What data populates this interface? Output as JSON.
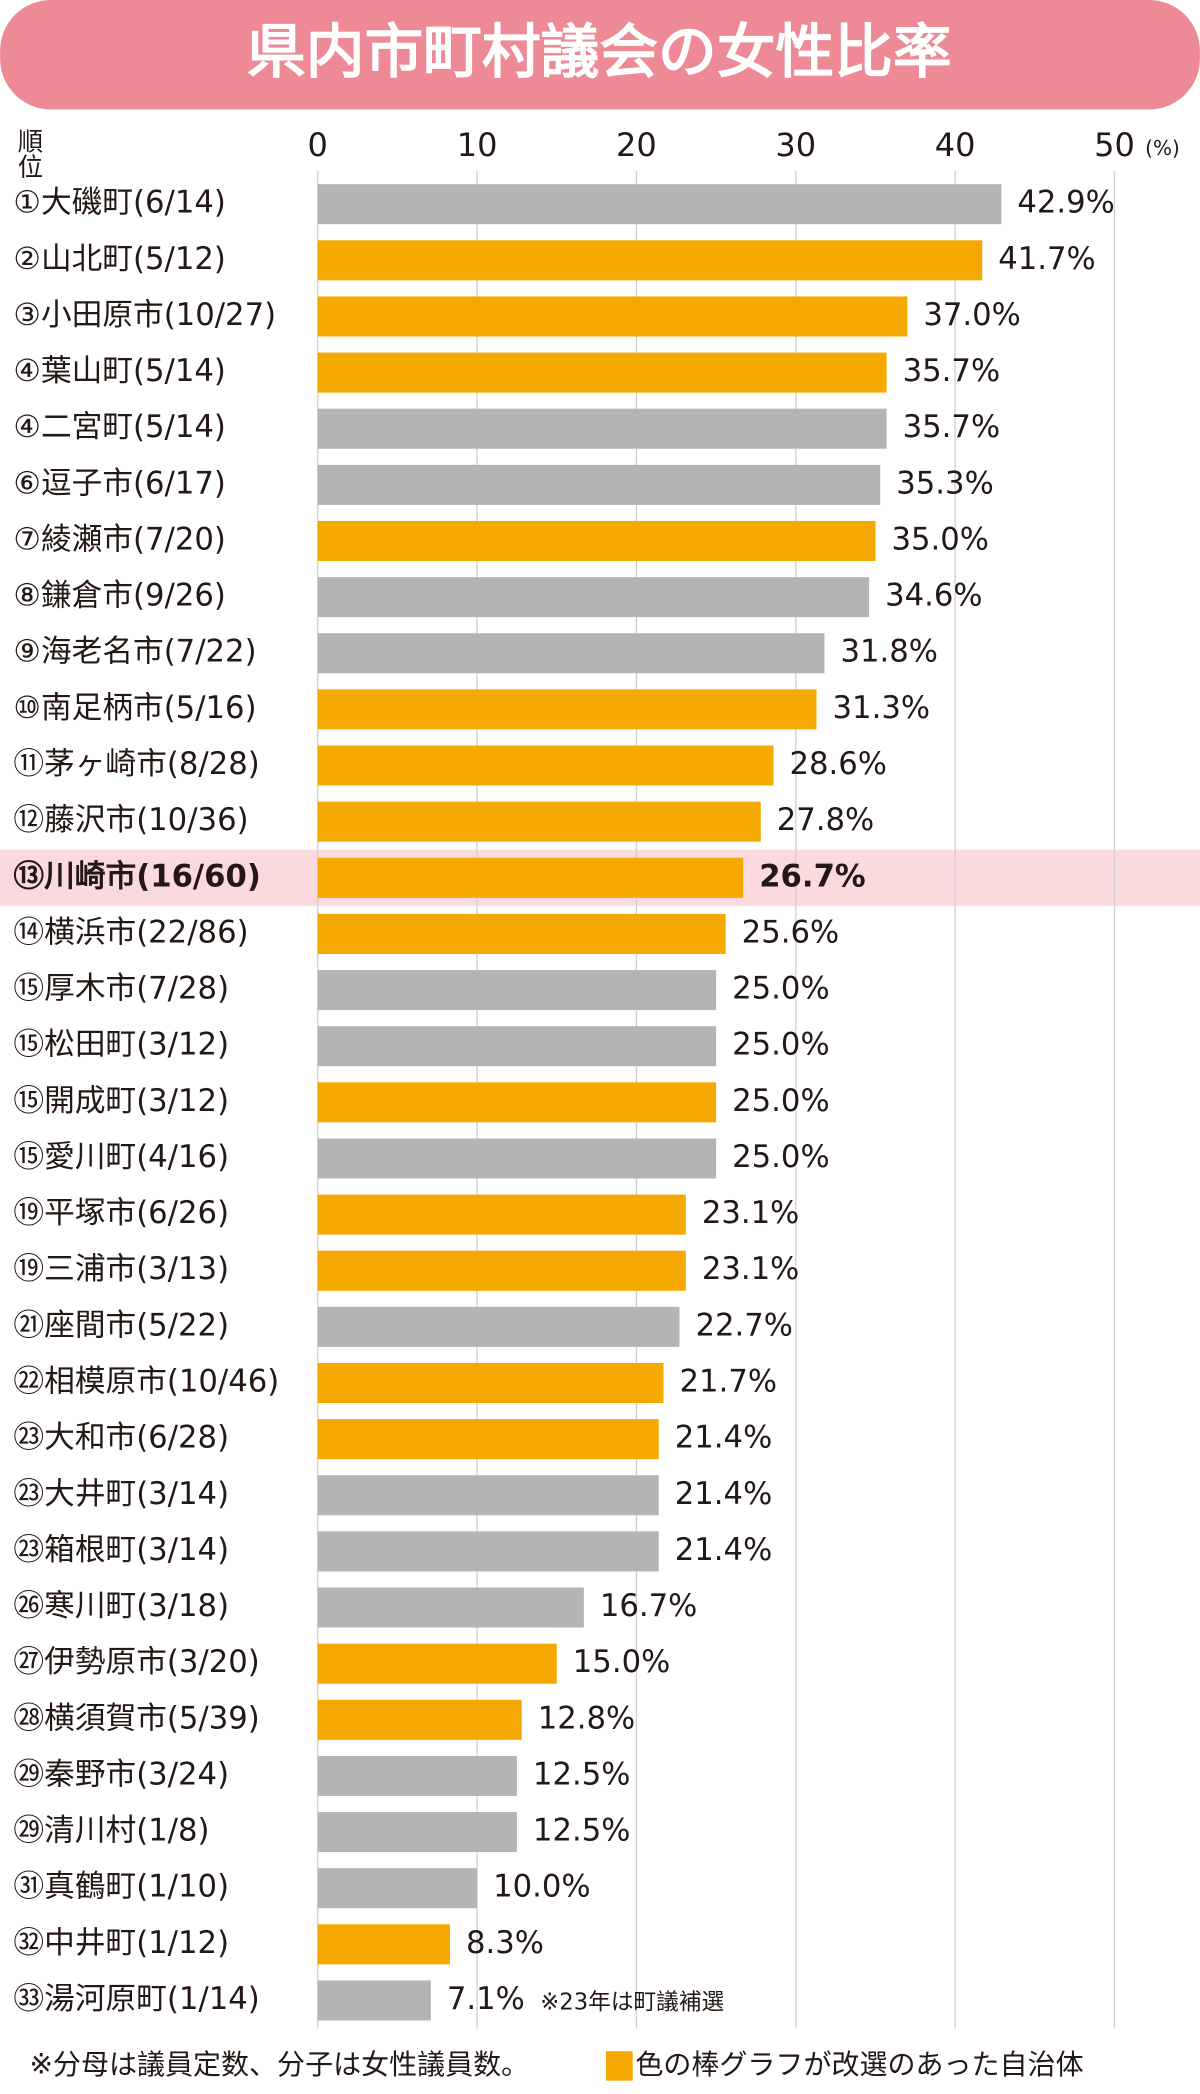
{
  "chart_data": {
    "type": "hbar",
    "title": "県内市町村議会の女性比率",
    "rank_label": "順位",
    "unit_label": "(%)",
    "categories": [
      "①大磯町(6/14)",
      "②山北町(5/12)",
      "③小田原市(10/27)",
      "④葉山町(5/14)",
      "④二宮町(5/14)",
      "⑥逗子市(6/17)",
      "⑦綾瀬市(7/20)",
      "⑧鎌倉市(9/26)",
      "⑨海老名市(7/22)",
      "⑩南足柄市(5/16)",
      "⑪茅ヶ崎市(8/28)",
      "⑫藤沢市(10/36)",
      "⑬川崎市(16/60)",
      "⑭横浜市(22/86)",
      "⑮厚木市(7/28)",
      "⑮松田町(3/12)",
      "⑮開成町(3/12)",
      "⑮愛川町(4/16)",
      "⑲平塚市(6/26)",
      "⑲三浦市(3/13)",
      "㉑座間市(5/22)",
      "㉒相模原市(10/46)",
      "㉓大和市(6/28)",
      "㉓大井町(3/14)",
      "㉓箱根町(3/14)",
      "㉖寒川町(3/18)",
      "㉗伊勢原市(3/20)",
      "㉘横須賀市(5/39)",
      "㉙秦野市(3/24)",
      "㉙清川村(1/8)",
      "㉛真鶴町(1/10)",
      "㉜中井町(1/12)",
      "㉝湯河原町(1/14)"
    ],
    "values": [
      42.9,
      41.7,
      37.0,
      35.7,
      35.7,
      35.3,
      35.0,
      34.6,
      31.8,
      31.3,
      28.6,
      27.8,
      26.7,
      25.6,
      25.0,
      25.0,
      25.0,
      25.0,
      23.1,
      23.1,
      22.7,
      21.7,
      21.4,
      21.4,
      21.4,
      16.7,
      15.0,
      12.8,
      12.5,
      12.5,
      10.0,
      8.3,
      7.1
    ],
    "value_labels": [
      "42.9%",
      "41.7%",
      "37.0%",
      "35.7%",
      "35.7%",
      "35.3%",
      "35.0%",
      "34.6%",
      "31.8%",
      "31.3%",
      "28.6%",
      "27.8%",
      "26.7%",
      "25.6%",
      "25.0%",
      "25.0%",
      "25.0%",
      "25.0%",
      "23.1%",
      "23.1%",
      "22.7%",
      "21.7%",
      "21.4%",
      "21.4%",
      "21.4%",
      "16.7%",
      "15.0%",
      "12.8%",
      "12.5%",
      "12.5%",
      "10.0%",
      "8.3%",
      "7.1%"
    ],
    "colors": [
      "#b4b4b4",
      "#f5a800",
      "#f5a800",
      "#f5a800",
      "#b4b4b4",
      "#b4b4b4",
      "#f5a800",
      "#b4b4b4",
      "#b4b4b4",
      "#f5a800",
      "#f5a800",
      "#f5a800",
      "#f5a800",
      "#f5a800",
      "#b4b4b4",
      "#b4b4b4",
      "#f5a800",
      "#b4b4b4",
      "#f5a800",
      "#f5a800",
      "#b4b4b4",
      "#f5a800",
      "#f5a800",
      "#b4b4b4",
      "#b4b4b4",
      "#b4b4b4",
      "#f5a800",
      "#f5a800",
      "#b4b4b4",
      "#b4b4b4",
      "#b4b4b4",
      "#f5a800",
      "#b4b4b4"
    ],
    "highlight_index": 12,
    "xlim": [
      0,
      50
    ],
    "xticks": [
      0,
      10,
      20,
      30,
      40,
      50
    ],
    "grid": true,
    "annotation": "※23年は町議補選",
    "note": "※分母は議員定数、分子は女性議員数。",
    "legend": {
      "color": "#f5a800",
      "label": "色の棒グラフが改選のあった自治体"
    }
  }
}
